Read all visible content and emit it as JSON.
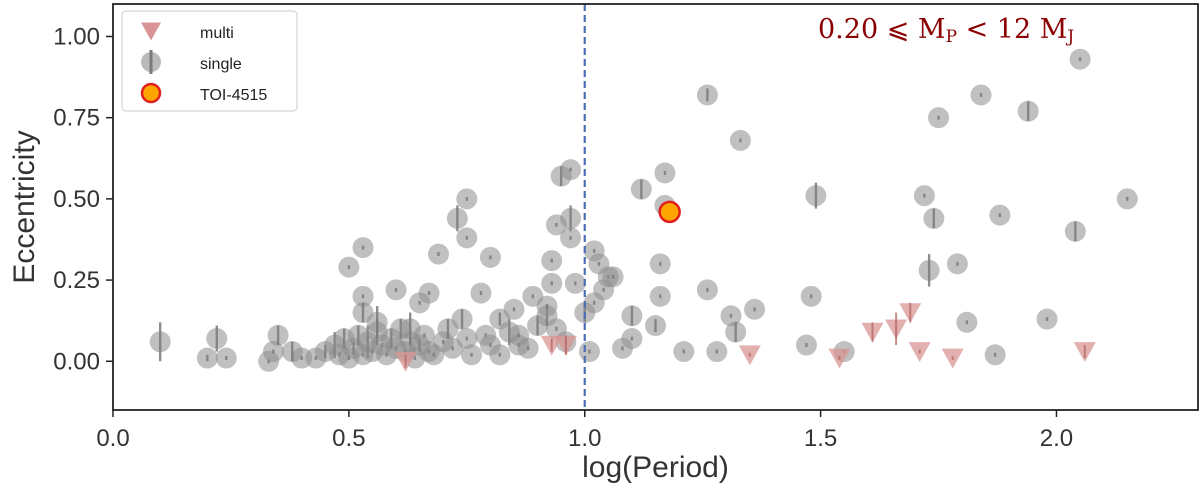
{
  "chart_data": {
    "type": "scatter",
    "title": "",
    "xlabel": "log(Period)",
    "ylabel": "Eccentricity",
    "xlim": [
      0.0,
      2.3
    ],
    "ylim": [
      -0.15,
      1.1
    ],
    "xticks": [
      0.0,
      0.5,
      1.0,
      1.5,
      2.0
    ],
    "xtick_labels": [
      "0.0",
      "0.5",
      "1.0",
      "1.5",
      "2.0"
    ],
    "yticks": [
      0.0,
      0.25,
      0.5,
      0.75,
      1.0
    ],
    "ytick_labels": [
      "0.00",
      "0.25",
      "0.50",
      "0.75",
      "1.00"
    ],
    "grid": false,
    "legend_position": "top-left",
    "annotation": {
      "text": "0.20 ⩽ M",
      "sub1": "P",
      "text2": " < 12 M",
      "sub2": "J",
      "color": "#8b0000"
    },
    "vline": {
      "x": 1.0,
      "color": "#4a6fb3",
      "style": "dashed"
    },
    "colors": {
      "single": "#8c8c8c",
      "multi": "#d99595",
      "highlight_fill": "#ffa500",
      "highlight_edge": "#e02020",
      "errbar": "#7a7a7a"
    },
    "series": [
      {
        "name": "multi",
        "marker": "triangle-down",
        "points": [
          [
            0.62,
            0.0,
            0.02
          ],
          [
            0.93,
            0.05,
            0.02
          ],
          [
            0.96,
            0.05,
            0.03
          ],
          [
            1.35,
            0.02,
            0.0
          ],
          [
            1.54,
            0.01,
            0.0
          ],
          [
            1.61,
            0.09,
            0.03
          ],
          [
            1.66,
            0.1,
            0.05
          ],
          [
            1.69,
            0.15,
            0.03
          ],
          [
            1.71,
            0.03,
            0.0
          ],
          [
            1.78,
            0.01,
            0.0
          ],
          [
            2.06,
            0.03,
            0.02
          ]
        ]
      },
      {
        "name": "single",
        "marker": "circle",
        "points": [
          [
            0.1,
            0.06,
            0.06
          ],
          [
            0.2,
            0.01,
            0.01
          ],
          [
            0.22,
            0.07,
            0.04
          ],
          [
            0.24,
            0.01,
            0.0
          ],
          [
            0.33,
            0.0,
            0.0
          ],
          [
            0.34,
            0.03,
            0.0
          ],
          [
            0.35,
            0.08,
            0.03
          ],
          [
            0.4,
            0.01,
            0.0
          ],
          [
            0.43,
            0.01,
            0.0
          ],
          [
            0.45,
            0.03,
            0.02
          ],
          [
            0.47,
            0.05,
            0.04
          ],
          [
            0.48,
            0.02,
            0.0
          ],
          [
            0.49,
            0.07,
            0.03
          ],
          [
            0.5,
            0.01,
            0.0
          ],
          [
            0.51,
            0.04,
            0.02
          ],
          [
            0.52,
            0.08,
            0.03
          ],
          [
            0.53,
            0.02,
            0.0
          ],
          [
            0.54,
            0.06,
            0.05
          ],
          [
            0.55,
            0.03,
            0.0
          ],
          [
            0.56,
            0.09,
            0.04
          ],
          [
            0.57,
            0.05,
            0.0
          ],
          [
            0.58,
            0.02,
            0.0
          ],
          [
            0.59,
            0.07,
            0.03
          ],
          [
            0.6,
            0.04,
            0.0
          ],
          [
            0.61,
            0.1,
            0.03
          ],
          [
            0.62,
            0.03,
            0.0
          ],
          [
            0.63,
            0.06,
            0.0
          ],
          [
            0.64,
            0.01,
            0.0
          ],
          [
            0.65,
            0.05,
            0.02
          ],
          [
            0.66,
            0.08,
            0.0
          ],
          [
            0.67,
            0.03,
            0.0
          ],
          [
            0.68,
            0.02,
            0.0
          ],
          [
            0.7,
            0.06,
            0.0
          ],
          [
            0.71,
            0.1,
            0.03
          ],
          [
            0.72,
            0.04,
            0.0
          ],
          [
            0.74,
            0.13,
            0.03
          ],
          [
            0.75,
            0.07,
            0.0
          ],
          [
            0.76,
            0.02,
            0.0
          ],
          [
            0.79,
            0.08,
            0.0
          ],
          [
            0.8,
            0.05,
            0.0
          ],
          [
            0.82,
            0.02,
            0.0
          ],
          [
            0.84,
            0.09,
            0.04
          ],
          [
            0.86,
            0.05,
            0.0
          ],
          [
            0.88,
            0.04,
            0.0
          ],
          [
            0.9,
            0.11,
            0.03
          ],
          [
            0.92,
            0.14,
            0.03
          ],
          [
            0.53,
            0.35,
            0.0
          ],
          [
            0.5,
            0.29,
            0.0
          ],
          [
            0.53,
            0.2,
            0.0
          ],
          [
            0.53,
            0.15,
            0.03
          ],
          [
            0.6,
            0.22,
            0.0
          ],
          [
            0.63,
            0.1,
            0.05
          ],
          [
            0.65,
            0.18,
            0.0
          ],
          [
            0.67,
            0.21,
            0.0
          ],
          [
            0.69,
            0.33,
            0.0
          ],
          [
            0.73,
            0.44,
            0.04
          ],
          [
            0.75,
            0.5,
            0.0
          ],
          [
            0.75,
            0.38,
            0.0
          ],
          [
            0.8,
            0.32,
            0.0
          ],
          [
            0.78,
            0.21,
            0.0
          ],
          [
            0.82,
            0.13,
            0.02
          ],
          [
            0.85,
            0.16,
            0.0
          ],
          [
            0.89,
            0.2,
            0.0
          ],
          [
            0.93,
            0.31,
            0.0
          ],
          [
            0.93,
            0.24,
            0.0
          ],
          [
            0.92,
            0.17,
            0.0
          ],
          [
            0.94,
            0.42,
            0.0
          ],
          [
            0.95,
            0.57,
            0.03
          ],
          [
            0.97,
            0.59,
            0.0
          ],
          [
            0.97,
            0.44,
            0.04
          ],
          [
            0.97,
            0.38,
            0.0
          ],
          [
            0.98,
            0.24,
            0.0
          ],
          [
            0.94,
            0.1,
            0.0
          ],
          [
            0.96,
            0.06,
            0.0
          ],
          [
            1.0,
            0.15,
            0.03
          ],
          [
            1.01,
            0.03,
            0.0
          ],
          [
            1.02,
            0.18,
            0.0
          ],
          [
            1.02,
            0.34,
            0.0
          ],
          [
            1.03,
            0.3,
            0.0
          ],
          [
            1.04,
            0.22,
            0.0
          ],
          [
            1.05,
            0.26,
            0.0
          ],
          [
            1.06,
            0.26,
            0.0
          ],
          [
            1.08,
            0.04,
            0.0
          ],
          [
            1.1,
            0.07,
            0.0
          ],
          [
            1.1,
            0.14,
            0.03
          ],
          [
            1.12,
            0.53,
            0.03
          ],
          [
            1.15,
            0.11,
            0.02
          ],
          [
            1.16,
            0.3,
            0.0
          ],
          [
            1.16,
            0.2,
            0.0
          ],
          [
            1.17,
            0.58,
            0.0
          ],
          [
            1.17,
            0.48,
            0.0
          ],
          [
            1.21,
            0.03,
            0.0
          ],
          [
            1.26,
            0.82,
            0.02
          ],
          [
            1.26,
            0.22,
            0.0
          ],
          [
            1.28,
            0.03,
            0.0
          ],
          [
            1.31,
            0.14,
            0.0
          ],
          [
            1.32,
            0.09,
            0.03
          ],
          [
            1.33,
            0.68,
            0.0
          ],
          [
            1.36,
            0.16,
            0.0
          ],
          [
            1.47,
            0.05,
            0.0
          ],
          [
            1.48,
            0.2,
            0.0
          ],
          [
            1.49,
            0.51,
            0.04
          ],
          [
            1.55,
            0.03,
            0.0
          ],
          [
            1.72,
            0.51,
            0.0
          ],
          [
            1.73,
            0.28,
            0.05
          ],
          [
            1.74,
            0.44,
            0.03
          ],
          [
            1.75,
            0.75,
            0.0
          ],
          [
            1.79,
            0.3,
            0.0
          ],
          [
            1.81,
            0.12,
            0.0
          ],
          [
            1.84,
            0.82,
            0.0
          ],
          [
            1.87,
            0.02,
            0.0
          ],
          [
            1.88,
            0.45,
            0.0
          ],
          [
            1.94,
            0.77,
            0.03
          ],
          [
            1.98,
            0.13,
            0.0
          ],
          [
            2.04,
            0.4,
            0.03
          ],
          [
            2.05,
            0.93,
            0.0
          ],
          [
            2.15,
            0.5,
            0.0
          ],
          [
            0.38,
            0.03,
            0.03
          ],
          [
            0.56,
            0.12,
            0.05
          ],
          [
            0.86,
            0.08,
            0.0
          ]
        ]
      },
      {
        "name": "TOI-4515",
        "marker": "circle-highlight",
        "points": [
          [
            1.18,
            0.46,
            0.0
          ]
        ]
      }
    ]
  }
}
